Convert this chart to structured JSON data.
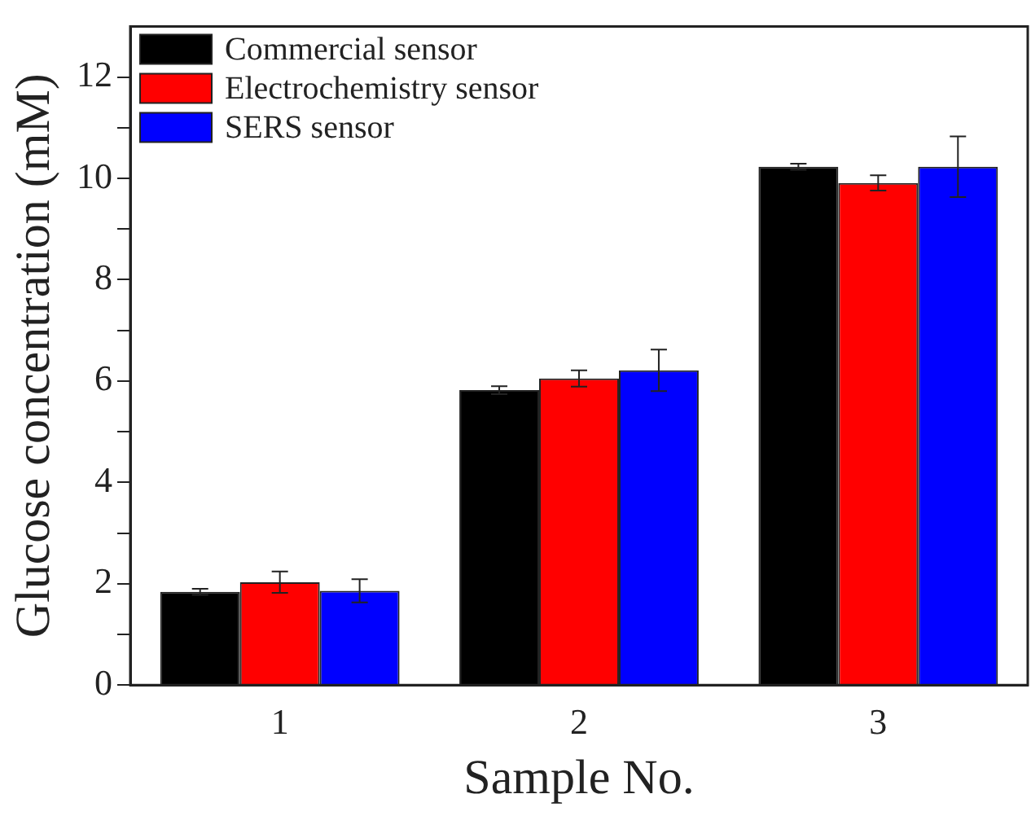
{
  "chart_data": {
    "type": "bar",
    "xlabel": "Sample No.",
    "ylabel": "Glucose concentration (mM)",
    "categories": [
      "1",
      "2",
      "3"
    ],
    "series": [
      {
        "name": "Commercial sensor",
        "color": "#000000",
        "values": [
          1.84,
          5.82,
          10.23
        ],
        "errors": [
          0.06,
          0.08,
          0.06
        ]
      },
      {
        "name": "Electrochemistry sensor",
        "color": "#ff0000",
        "values": [
          2.03,
          6.05,
          9.91
        ],
        "errors": [
          0.21,
          0.16,
          0.15
        ]
      },
      {
        "name": "SERS sensor",
        "color": "#0000ff",
        "values": [
          1.86,
          6.21,
          10.23
        ],
        "errors": [
          0.23,
          0.41,
          0.6
        ]
      }
    ],
    "ylim": [
      0,
      13
    ],
    "yticks": [
      0,
      {
        "value": 1,
        "label": null
      },
      2,
      {
        "value": 3,
        "label": null
      },
      4,
      {
        "value": 5,
        "label": null
      },
      6,
      {
        "value": 7,
        "label": null
      },
      8,
      {
        "value": 9,
        "label": null
      },
      10,
      {
        "value": 11,
        "label": null
      },
      12
    ],
    "grid": false,
    "legend": "top left"
  }
}
